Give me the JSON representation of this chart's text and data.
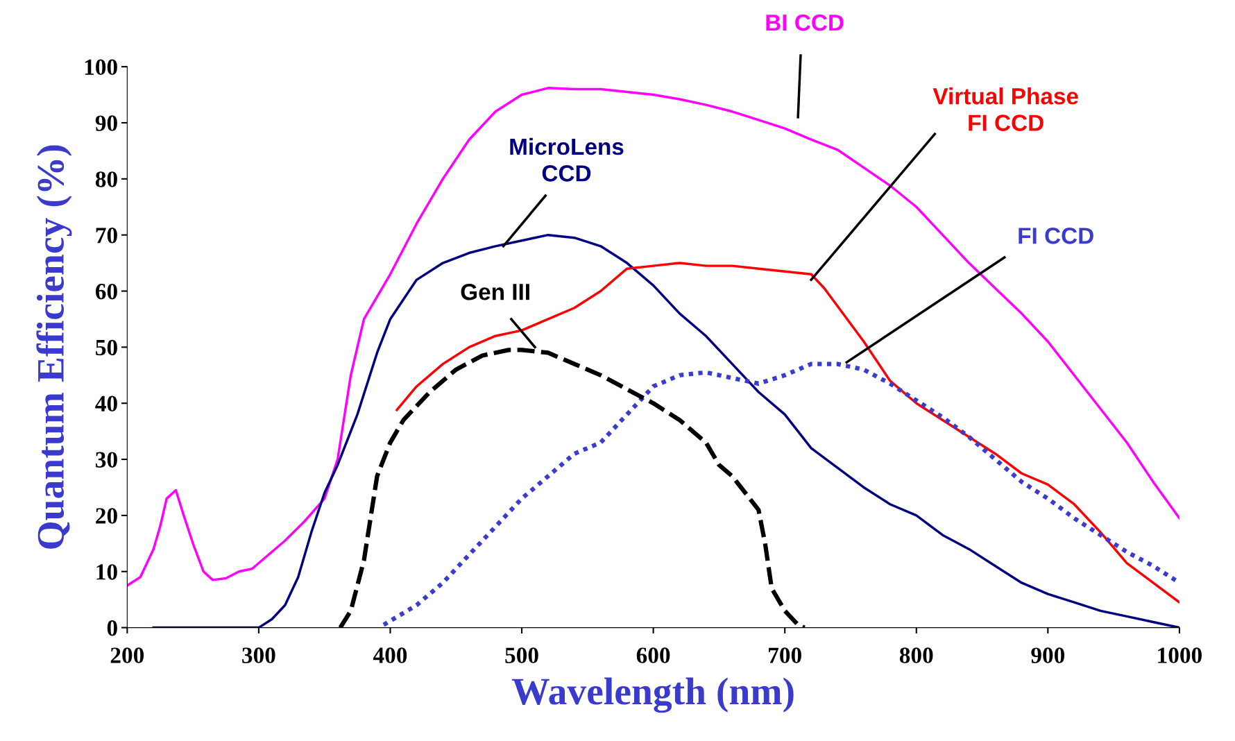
{
  "chart_data": {
    "type": "line",
    "xlabel": "Wavelength (nm)",
    "ylabel": "Quantum Efficiency (%)",
    "xlim": [
      200,
      1000
    ],
    "ylim": [
      0,
      100
    ],
    "xticks": [
      200,
      300,
      400,
      500,
      600,
      700,
      800,
      900,
      1000
    ],
    "yticks": [
      0,
      10,
      20,
      30,
      40,
      50,
      60,
      70,
      80,
      90,
      100
    ],
    "grid": false,
    "legend": false,
    "marker": "none",
    "series": [
      {
        "name": "BI CCD",
        "color": "#ff00ff",
        "line_style": "solid",
        "x": [
          200,
          210,
          220,
          225,
          230,
          237,
          243,
          250,
          258,
          265,
          275,
          285,
          295,
          305,
          320,
          335,
          350,
          360,
          370,
          380,
          400,
          420,
          440,
          460,
          480,
          500,
          520,
          540,
          560,
          580,
          600,
          620,
          640,
          660,
          680,
          700,
          720,
          740,
          760,
          780,
          800,
          820,
          840,
          860,
          880,
          900,
          920,
          940,
          960,
          980,
          1000
        ],
        "values": [
          7.5,
          9,
          14,
          18,
          23,
          24.5,
          20,
          15,
          10,
          8.5,
          8.8,
          10,
          10.5,
          12.5,
          15.5,
          19,
          23,
          30,
          45,
          55,
          63,
          72,
          80,
          87,
          92,
          95,
          96.2,
          96,
          96,
          95.5,
          95,
          94.2,
          93.2,
          92,
          90.5,
          89,
          87,
          85.2,
          82,
          78.8,
          75,
          70,
          65,
          60.5,
          56,
          51,
          45,
          39,
          33,
          26,
          19.5
        ]
      },
      {
        "name": "MicroLens\nCCD",
        "color": "#000080",
        "line_style": "solid",
        "x": [
          220,
          280,
          300,
          310,
          320,
          330,
          340,
          350,
          360,
          375,
          390,
          400,
          420,
          440,
          460,
          480,
          500,
          520,
          540,
          560,
          580,
          600,
          620,
          640,
          660,
          680,
          700,
          720,
          740,
          760,
          780,
          800,
          820,
          840,
          860,
          880,
          900,
          920,
          940,
          960,
          980,
          1000
        ],
        "values": [
          0,
          0,
          0,
          1.5,
          4,
          9,
          17,
          24,
          29,
          38,
          49,
          55,
          62,
          65,
          66.8,
          68,
          69,
          70,
          69.5,
          68,
          65,
          61,
          56,
          52,
          47,
          42,
          38,
          32,
          28.5,
          25,
          22,
          20,
          16.5,
          14,
          11,
          8,
          6,
          4.5,
          3,
          2,
          1,
          0
        ]
      },
      {
        "name": "Virtual Phase\nFI CCD",
        "color": "#ff0000",
        "line_style": "solid",
        "x": [
          405,
          420,
          440,
          460,
          480,
          500,
          520,
          540,
          560,
          580,
          600,
          620,
          640,
          660,
          680,
          700,
          720,
          730,
          760,
          780,
          800,
          820,
          840,
          860,
          880,
          900,
          920,
          940,
          960,
          980,
          1000
        ],
        "values": [
          38.8,
          43,
          47,
          50,
          52,
          53,
          55,
          57,
          60,
          64,
          64.5,
          65,
          64.5,
          64.5,
          64,
          63.5,
          63,
          60.5,
          51,
          44,
          40,
          37,
          34,
          31,
          27.5,
          25.5,
          22,
          17,
          11.5,
          8,
          4.5
        ]
      },
      {
        "name": "FI CCD",
        "color": "#3b3bd0",
        "line_style": "dotted",
        "x": [
          395,
          420,
          440,
          460,
          480,
          500,
          520,
          540,
          560,
          580,
          600,
          620,
          640,
          660,
          680,
          700,
          720,
          740,
          760,
          780,
          800,
          820,
          840,
          860,
          880,
          900,
          920,
          940,
          960,
          980,
          1000
        ],
        "values": [
          0.5,
          4,
          8,
          13,
          18,
          23,
          27,
          31,
          33,
          38,
          43,
          45,
          45.5,
          44.5,
          43.5,
          45,
          47,
          47,
          46,
          43.5,
          40.5,
          37.5,
          34,
          30,
          26,
          23,
          19.5,
          16.5,
          13.5,
          11,
          8
        ]
      },
      {
        "name": "Gen III",
        "color": "#000000",
        "line_style": "dashed",
        "x": [
          362,
          370,
          380,
          390,
          400,
          410,
          430,
          450,
          470,
          490,
          500,
          520,
          540,
          560,
          580,
          600,
          620,
          640,
          650,
          660,
          680,
          685,
          690,
          700,
          710,
          715
        ],
        "values": [
          0,
          3,
          12,
          27,
          33,
          37,
          42,
          46,
          48.5,
          49.5,
          49.5,
          49,
          47,
          45,
          42.5,
          40,
          37,
          33,
          29,
          27,
          21,
          15,
          7,
          3,
          0.5,
          0
        ]
      }
    ]
  }
}
